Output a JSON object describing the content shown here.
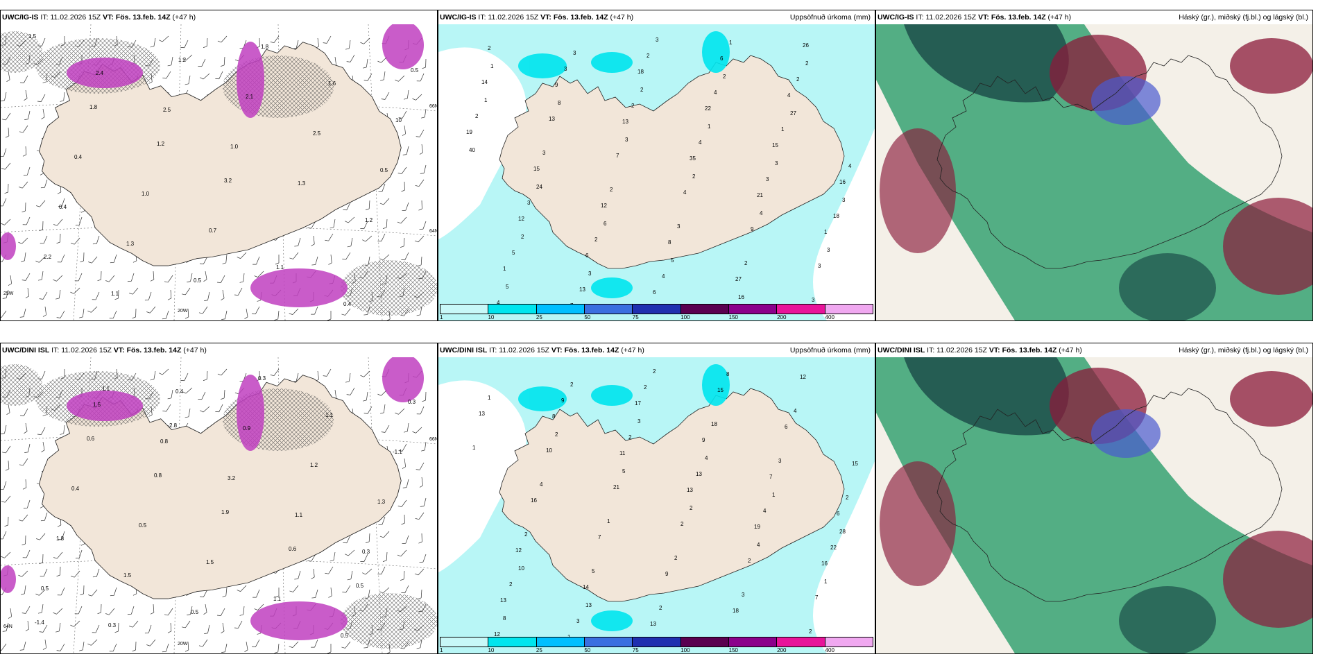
{
  "panels": [
    {
      "id": "p1",
      "model": "UWC/IG-IS",
      "it_label": "IT:",
      "it": "11.02.2026 15Z",
      "vt_label": "VT:",
      "vt": "Fös. 13.feb. 14Z",
      "lead": "(+47 h)",
      "title": "",
      "kind": "wind"
    },
    {
      "id": "p2",
      "model": "UWC/IG-IS",
      "it_label": "IT:",
      "it": "11.02.2026 15Z",
      "vt_label": "VT:",
      "vt": "Fös. 13.feb. 14Z",
      "lead": "(+47 h)",
      "title": "Uppsöfnuð úrkoma (mm)",
      "kind": "precip"
    },
    {
      "id": "p3",
      "model": "UWC/IG-IS",
      "it_label": "IT:",
      "it": "11.02.2026 15Z",
      "vt_label": "VT:",
      "vt": "Fös. 13.feb. 14Z",
      "lead": "(+47 h)",
      "title": "Háský (gr.), miðský (fj.bl.) og lágský (bl.)",
      "kind": "cloud"
    },
    {
      "id": "p4",
      "model": "UWC/DINI ISL",
      "it_label": "IT:",
      "it": "11.02.2026 15Z",
      "vt_label": "VT:",
      "vt": "Fös. 13.feb. 14Z",
      "lead": "(+47 h)",
      "title": "",
      "kind": "wind"
    },
    {
      "id": "p5",
      "model": "UWC/DINI ISL",
      "it_label": "IT:",
      "it": "11.02.2026 15Z",
      "vt_label": "VT:",
      "vt": "Fös. 13.feb. 14Z",
      "lead": "(+47 h)",
      "title": "Uppsöfnuð úrkoma (mm)",
      "kind": "precip"
    },
    {
      "id": "p6",
      "model": "UWC/DINI ISL",
      "it_label": "IT:",
      "it": "11.02.2026 15Z",
      "vt_label": "VT:",
      "vt": "Fös. 13.feb. 14Z",
      "lead": "(+47 h)",
      "title": "Háský (gr.), miðský (fj.bl.) og lágský (bl.)",
      "kind": "cloud"
    }
  ],
  "colorbar": {
    "colors": [
      "#c8f8f8",
      "#00e5ee",
      "#00bfff",
      "#3a6fe0",
      "#1f2fb0",
      "#5a0050",
      "#8b008b",
      "#e8149a",
      "#f0a8f0"
    ],
    "labels": [
      "1",
      "10",
      "25",
      "50",
      "75",
      "100",
      "150",
      "200",
      "400"
    ]
  },
  "wind_labels": {
    "p1": {
      "grid": [
        "20W",
        "66N",
        "25W",
        "64N"
      ],
      "values": [
        "1.5",
        "2.4",
        "2.5",
        "1.0",
        "1.3",
        "1.2",
        "2.2",
        "1.1",
        "1.2",
        "2.1",
        "2.5",
        "0.5",
        "0.4",
        "1.3",
        "0.5",
        "1.8",
        "1.6",
        "10",
        "0.4",
        "1.0",
        "0.7",
        "1.1",
        "0.4",
        "0.5",
        "1.8",
        "1.2",
        "3.2"
      ]
    },
    "p4": {
      "grid": [
        "20W",
        "66N",
        "64N"
      ],
      "values": [
        "1.5",
        "0.8",
        "3.2",
        "1.1",
        "0.3",
        "0.5",
        "0.3",
        "0.4",
        "0.9",
        "1.2",
        "1.3",
        "1.8",
        "1.5",
        "0.5",
        "0.3",
        "1.1",
        "-1.1",
        "0.4",
        "0.5",
        "1.5",
        "1.1",
        "0.5",
        "0.3",
        "0.6",
        "0.8",
        "1.9",
        "0.6",
        "0.5",
        "-1.4",
        "1.1",
        "2.8"
      ]
    }
  },
  "precip_labels": {
    "p2": [
      "2",
      "9",
      "13",
      "35",
      "21",
      "1",
      "1",
      "7",
      "18",
      "22",
      "15",
      "16",
      "12",
      "6",
      "6",
      "6",
      "4",
      "19",
      "15",
      "12",
      "8",
      "27",
      "26",
      "14",
      "13",
      "7",
      "4",
      "9",
      "3",
      "4",
      "3",
      "2",
      "4",
      "3",
      "18",
      "5",
      "13",
      "2",
      "4",
      "1",
      "4",
      "3",
      "2",
      "4",
      "1",
      "2",
      "2",
      "3",
      "2",
      "3",
      "2",
      "3",
      "1",
      "8",
      "3",
      "2",
      "4",
      "3",
      "5",
      "3",
      "2",
      "1",
      "3",
      "3",
      "2",
      "3",
      "3",
      "2",
      "27",
      "40",
      "24",
      "6",
      "5",
      "16",
      "2",
      "1"
    ],
    "p5": [
      "8",
      "11",
      "13",
      "19",
      "16",
      "13",
      "1",
      "17",
      "9",
      "7",
      "6",
      "12",
      "14",
      "13",
      "15",
      "6",
      "15",
      "16",
      "7",
      "9",
      "18",
      "12",
      "13",
      "10",
      "21",
      "2",
      "2",
      "7",
      "12",
      "9",
      "2",
      "13",
      "4",
      "22",
      "2",
      "3",
      "2",
      "18",
      "3",
      "2",
      "2",
      "5",
      "2",
      "8",
      "4",
      "1",
      "4",
      "1",
      "2",
      "3",
      "2",
      "1",
      "2",
      "5",
      "2",
      "4",
      "1",
      "8",
      "2",
      "3",
      "4",
      "1",
      "28",
      "10",
      "13",
      "2"
    ]
  },
  "colors": {
    "land": "#f2e6d9",
    "sea": "#ffffff",
    "precip_light": "#b8f6f6",
    "precip_mid": "#00e5ee",
    "magenta": "#c040c0",
    "hatch": "#555555",
    "cloud_green": "#2a9e6a",
    "cloud_dark": "#1d4f4a",
    "cloud_red": "#8b1a3a",
    "cloud_blue": "#4a5ad0"
  },
  "icons": {
    "coast": "iceland-coastline",
    "barb": "wind-barb"
  }
}
